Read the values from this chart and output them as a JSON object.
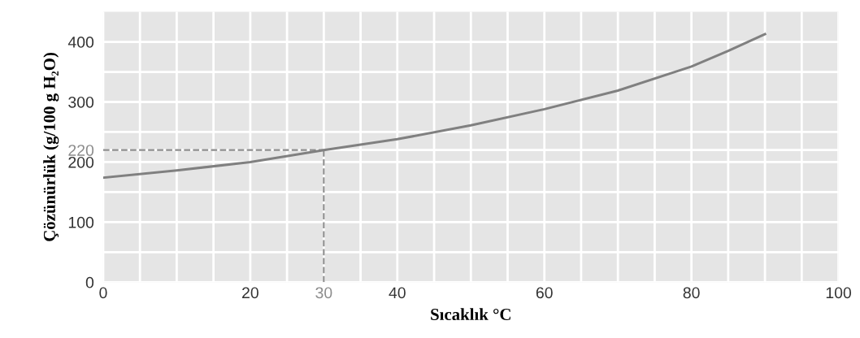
{
  "chart_data": {
    "type": "line",
    "xlabel": "Sıcaklık °C",
    "ylabel": "Çözünürlük (g/100 g H₂O)",
    "x": [
      0,
      10,
      20,
      30,
      40,
      50,
      60,
      70,
      80,
      85,
      90
    ],
    "series": [
      {
        "color": "#808080",
        "values": [
          174,
          186,
          200,
          220,
          238,
          261,
          288,
          319,
          359,
          385,
          413
        ]
      }
    ],
    "xlim": [
      0,
      100
    ],
    "ylim": [
      0,
      450
    ],
    "xticks": [
      0,
      {
        "value": 5,
        "label": null
      },
      {
        "value": 10,
        "label": null
      },
      {
        "value": 15,
        "label": null
      },
      20,
      {
        "value": 25,
        "label": null
      },
      30,
      {
        "value": 35,
        "label": null
      },
      40,
      {
        "value": 45,
        "label": null
      },
      {
        "value": 50,
        "label": null
      },
      {
        "value": 55,
        "label": null
      },
      60,
      {
        "value": 65,
        "label": null
      },
      {
        "value": 70,
        "label": null
      },
      {
        "value": 75,
        "label": null
      },
      80,
      {
        "value": 85,
        "label": null
      },
      {
        "value": 90,
        "label": null
      },
      {
        "value": 95,
        "label": null
      },
      100
    ],
    "yticks": [
      0,
      {
        "value": 50,
        "label": null
      },
      100,
      {
        "value": 150,
        "label": null
      },
      200,
      220,
      {
        "value": 250,
        "label": null
      },
      300,
      {
        "value": 350,
        "label": null
      },
      400
    ],
    "ref_lines": [
      {
        "axis": "y",
        "value": 220,
        "color": "#8c8c8c",
        "line_style": "dashed"
      },
      {
        "axis": "x",
        "value": 30,
        "color": "#8c8c8c",
        "line_style": "dashed"
      }
    ],
    "grid": true,
    "legend": false,
    "marker": "none",
    "line_style": "solid"
  }
}
